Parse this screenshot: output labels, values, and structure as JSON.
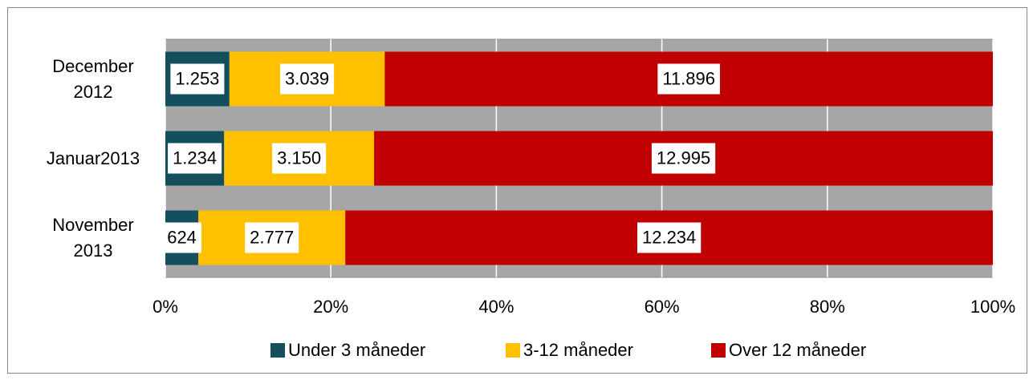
{
  "chart_data": {
    "type": "bar_stacked_percent",
    "categories": [
      "December 2012",
      "Januar2013",
      "November 2013"
    ],
    "series": [
      {
        "name": "Under 3 måneder",
        "color": "#134f5c",
        "values": [
          1253,
          1234,
          624
        ],
        "value_labels": [
          "1.253",
          "1.234",
          "624"
        ]
      },
      {
        "name": "3-12 måneder",
        "color": "#ffc000",
        "values": [
          3039,
          3150,
          2777
        ],
        "value_labels": [
          "3.039",
          "3.150",
          "2.777"
        ]
      },
      {
        "name": "Over 12 måneder",
        "color": "#c00000",
        "values": [
          11896,
          12995,
          12234
        ],
        "value_labels": [
          "11.896",
          "12.995",
          "12.234"
        ]
      }
    ],
    "xlim": [
      0,
      100
    ],
    "xticks": [
      {
        "value": 0,
        "label": "0%"
      },
      {
        "value": 20,
        "label": "20%"
      },
      {
        "value": 40,
        "label": "40%"
      },
      {
        "value": 60,
        "label": "60%"
      },
      {
        "value": 80,
        "label": "80%"
      },
      {
        "value": 100,
        "label": "100%"
      }
    ],
    "grid": true,
    "legend": "bottom",
    "plot_background": "#a6a6a6"
  }
}
